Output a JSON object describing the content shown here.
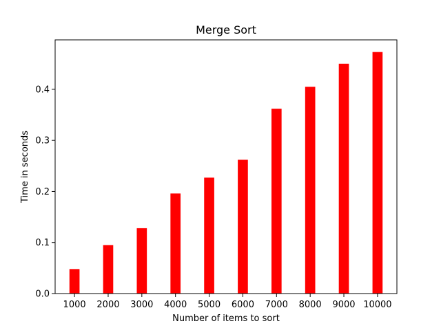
{
  "chart_data": {
    "type": "bar",
    "title": "Merge Sort",
    "xlabel": "Number of items to sort",
    "ylabel": "Time in seconds",
    "categories": [
      "1000",
      "2000",
      "3000",
      "4000",
      "5000",
      "6000",
      "7000",
      "8000",
      "9000",
      "10000"
    ],
    "values": [
      0.048,
      0.095,
      0.128,
      0.196,
      0.227,
      0.262,
      0.362,
      0.405,
      0.45,
      0.473
    ],
    "ylim": [
      0,
      0.4968
    ],
    "yticks": [
      0.0,
      0.1,
      0.2,
      0.3,
      0.4
    ],
    "ytick_labels": [
      "0.0",
      "0.1",
      "0.2",
      "0.3",
      "0.4"
    ],
    "bar_color": "#ff0000",
    "grid": false,
    "legend": "none"
  }
}
